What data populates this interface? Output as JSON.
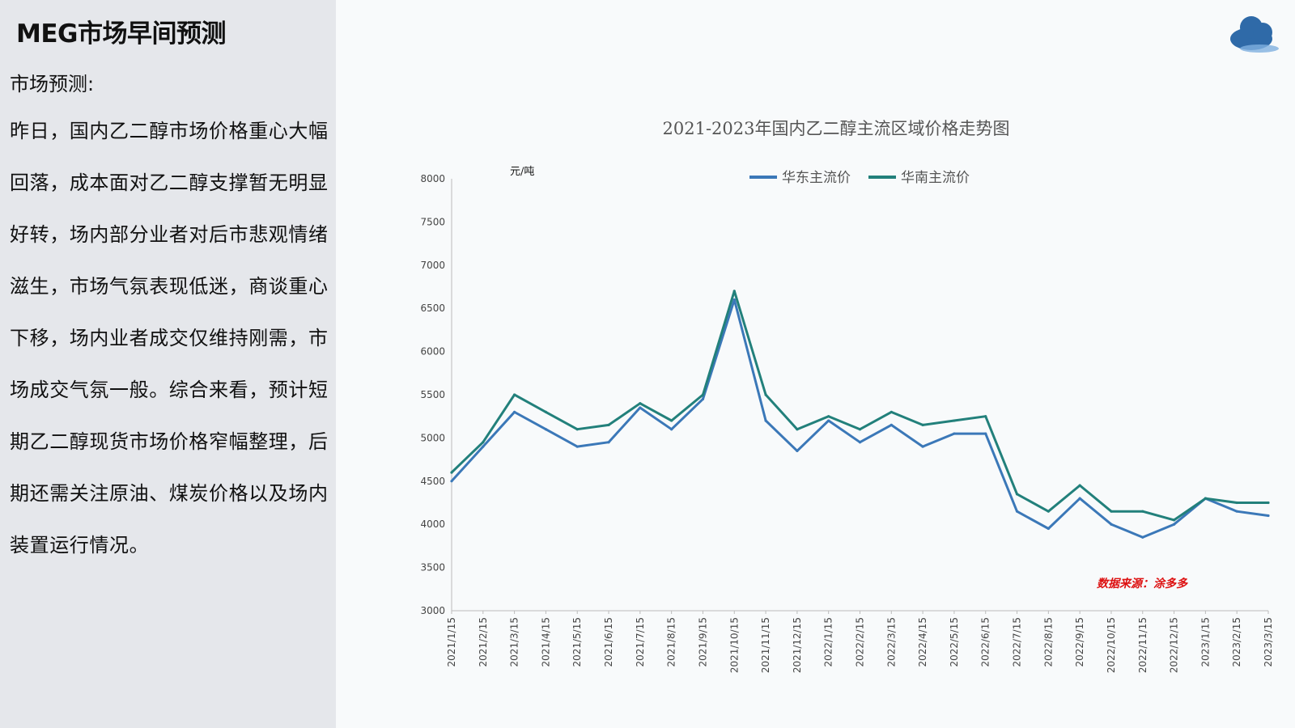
{
  "slide": {
    "title": "MEG市场早间预测",
    "heading": "市场预测:",
    "body": "昨日，国内乙二醇市场价格重心大幅回落，成本面对乙二醇支撑暂无明显好转，场内部分业者对后市悲观情绪滋生，市场气氛表现低迷，商谈重心下移，场内业者成交仅维持刚需，市场成交气氛一般。综合来看，预计短期乙二醇现货市场价格窄幅整理，后期还需关注原油、煤炭价格以及场内装置运行情况。"
  },
  "logo": {
    "icon": "cloud-icon",
    "color": "#2f6aa8"
  },
  "chart_data": {
    "type": "line",
    "title": "2021-2023年国内乙二醇主流区域价格走势图",
    "unit_label": "元/吨",
    "source_label": "数据来源：涂多多",
    "ylim": [
      3000,
      8000
    ],
    "yticks": [
      3000,
      3500,
      4000,
      4500,
      5000,
      5500,
      6000,
      6500,
      7000,
      7500,
      8000
    ],
    "legend_position": "top-center",
    "x_tick_labels": [
      "2021/1/15",
      "2021/2/15",
      "2021/3/15",
      "2021/4/15",
      "2021/5/15",
      "2021/6/15",
      "2021/7/15",
      "2021/8/15",
      "2021/9/15",
      "2021/10/15",
      "2021/11/15",
      "2021/12/15",
      "2022/1/15",
      "2022/2/15",
      "2022/3/15",
      "2022/4/15",
      "2022/5/15",
      "2022/6/15",
      "2022/7/15",
      "2022/8/15",
      "2022/9/15",
      "2022/10/15",
      "2022/11/15",
      "2022/12/15",
      "2023/1/15",
      "2023/2/15",
      "2023/3/15"
    ],
    "x": [
      "2021/1/15",
      "2021/2/15",
      "2021/3/15",
      "2021/4/15",
      "2021/5/15",
      "2021/6/15",
      "2021/7/15",
      "2021/8/15",
      "2021/9/15",
      "2021/10/15",
      "2021/11/15",
      "2021/12/15",
      "2022/1/15",
      "2022/2/15",
      "2022/3/15",
      "2022/4/15",
      "2022/5/15",
      "2022/6/15",
      "2022/7/15",
      "2022/8/15",
      "2022/9/15",
      "2022/10/15",
      "2022/11/15",
      "2022/12/15",
      "2023/1/15",
      "2023/2/15",
      "2023/3/15"
    ],
    "series": [
      {
        "name": "华东主流价",
        "color": "#3b78b8",
        "values": [
          4500,
          4900,
          5300,
          5100,
          4900,
          4950,
          5350,
          5100,
          5450,
          6600,
          5200,
          4850,
          5200,
          4950,
          5150,
          4900,
          5050,
          5050,
          4150,
          3950,
          4300,
          4000,
          3850,
          4000,
          4300,
          4150,
          4100
        ]
      },
      {
        "name": "华南主流价",
        "color": "#22807b",
        "values": [
          4600,
          4950,
          5500,
          5300,
          5100,
          5150,
          5400,
          5200,
          5500,
          6700,
          5500,
          5100,
          5250,
          5100,
          5300,
          5150,
          5200,
          5250,
          4350,
          4150,
          4450,
          4150,
          4150,
          4050,
          4300,
          4250,
          4250
        ]
      }
    ]
  }
}
